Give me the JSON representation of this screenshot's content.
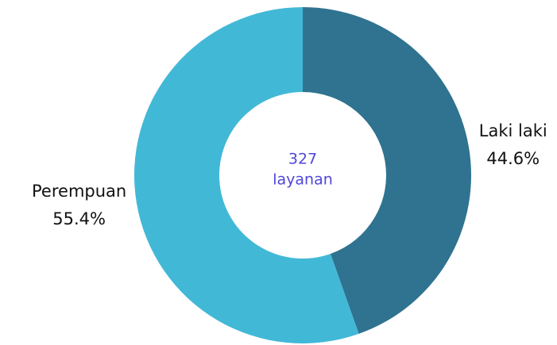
{
  "chart_data": {
    "type": "donut",
    "center_text": [
      "327",
      "layanan"
    ],
    "categories": [
      "Laki laki",
      "Perempuan"
    ],
    "values": [
      44.6,
      55.4
    ],
    "value_labels": [
      "44.6%",
      "55.4%"
    ],
    "colors": [
      "#2f7390",
      "#42b8d7"
    ],
    "center_color": "#5046d8"
  }
}
